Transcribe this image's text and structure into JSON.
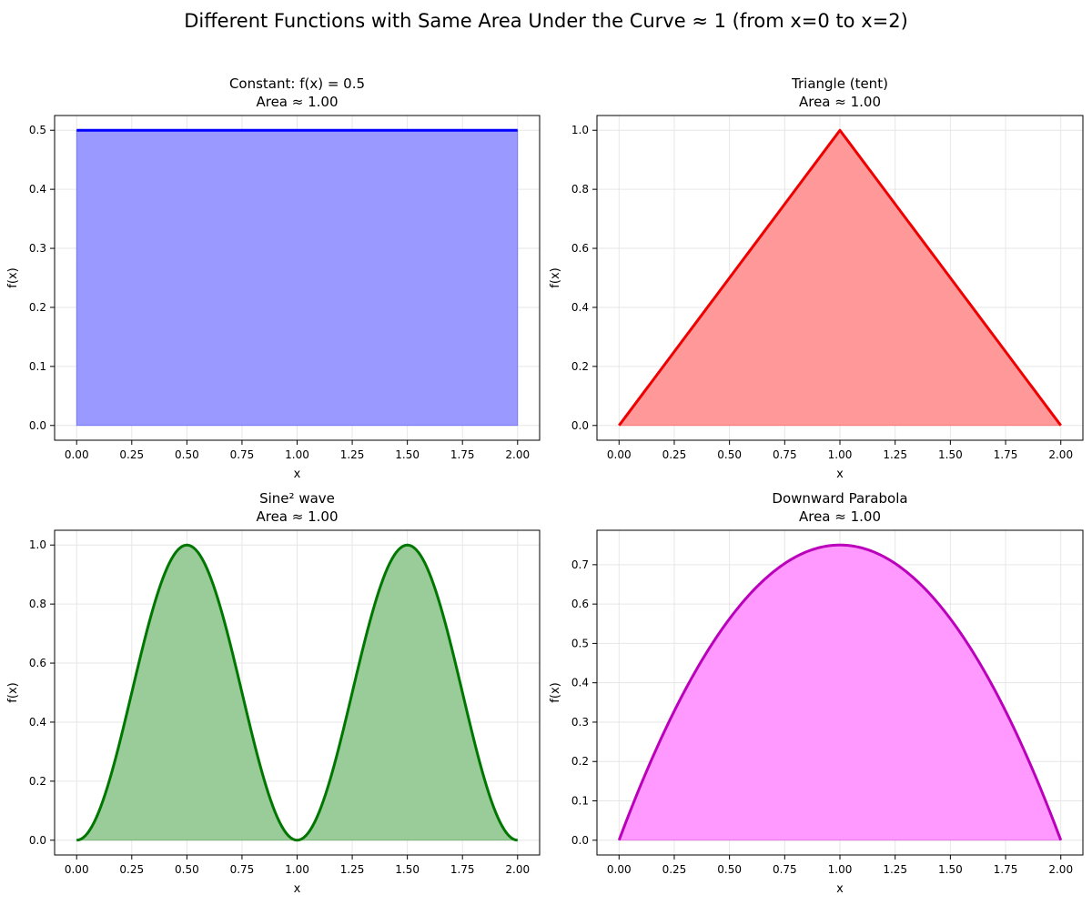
{
  "figure": {
    "title": "Different Functions with Same Area Under the Curve ≈ 1 (from x=0 to x=2)"
  },
  "chart_data": [
    {
      "type": "area",
      "title": "Constant: f(x) = 0.5",
      "subtitle": "Area ≈ 1.00",
      "xlabel": "x",
      "ylabel": "f(x)",
      "xlim": [
        -0.1,
        2.1
      ],
      "ylim": [
        -0.025,
        0.525
      ],
      "xticks": [
        "0.00",
        "0.25",
        "0.50",
        "0.75",
        "1.00",
        "1.25",
        "1.50",
        "1.75",
        "2.00"
      ],
      "yticks": [
        "0.0",
        "0.1",
        "0.2",
        "0.3",
        "0.4",
        "0.5"
      ],
      "grid": true,
      "color": "#0000ff",
      "fill_color": "#9999ff",
      "x": [
        0,
        0.25,
        0.5,
        0.75,
        1.0,
        1.25,
        1.5,
        1.75,
        2.0
      ],
      "y": [
        0.5,
        0.5,
        0.5,
        0.5,
        0.5,
        0.5,
        0.5,
        0.5,
        0.5
      ]
    },
    {
      "type": "area",
      "title": "Triangle (tent)",
      "subtitle": "Area ≈ 1.00",
      "xlabel": "x",
      "ylabel": "f(x)",
      "xlim": [
        -0.1,
        2.1
      ],
      "ylim": [
        -0.05,
        1.05
      ],
      "xticks": [
        "0.00",
        "0.25",
        "0.50",
        "0.75",
        "1.00",
        "1.25",
        "1.50",
        "1.75",
        "2.00"
      ],
      "yticks": [
        "0.0",
        "0.2",
        "0.4",
        "0.6",
        "0.8",
        "1.0"
      ],
      "grid": true,
      "color": "#ee0000",
      "fill_color": "#ff9999",
      "x": [
        0,
        0.25,
        0.5,
        0.75,
        1.0,
        1.25,
        1.5,
        1.75,
        2.0
      ],
      "y": [
        0,
        0.25,
        0.5,
        0.75,
        1.0,
        0.75,
        0.5,
        0.25,
        0
      ]
    },
    {
      "type": "area",
      "title": "Sine² wave",
      "subtitle": "Area ≈ 1.00",
      "xlabel": "x",
      "ylabel": "f(x)",
      "xlim": [
        -0.1,
        2.1
      ],
      "ylim": [
        -0.05,
        1.05
      ],
      "xticks": [
        "0.00",
        "0.25",
        "0.50",
        "0.75",
        "1.00",
        "1.25",
        "1.50",
        "1.75",
        "2.00"
      ],
      "yticks": [
        "0.0",
        "0.2",
        "0.4",
        "0.6",
        "0.8",
        "1.0"
      ],
      "grid": true,
      "color": "#007700",
      "fill_color": "#99cc99",
      "x": [
        0,
        0.125,
        0.25,
        0.375,
        0.5,
        0.625,
        0.75,
        0.875,
        1.0,
        1.125,
        1.25,
        1.375,
        1.5,
        1.625,
        1.75,
        1.875,
        2.0
      ],
      "y": [
        0,
        0.146,
        0.5,
        0.854,
        1.0,
        0.854,
        0.5,
        0.146,
        0,
        0.146,
        0.5,
        0.854,
        1.0,
        0.854,
        0.5,
        0.146,
        0
      ]
    },
    {
      "type": "area",
      "title": "Downward Parabola",
      "subtitle": "Area ≈ 1.00",
      "xlabel": "x",
      "ylabel": "f(x)",
      "xlim": [
        -0.1,
        2.1
      ],
      "ylim": [
        -0.0375,
        0.7875
      ],
      "xticks": [
        "0.00",
        "0.25",
        "0.50",
        "0.75",
        "1.00",
        "1.25",
        "1.50",
        "1.75",
        "2.00"
      ],
      "yticks": [
        "0.0",
        "0.1",
        "0.2",
        "0.3",
        "0.4",
        "0.5",
        "0.6",
        "0.7"
      ],
      "grid": true,
      "color": "#bb00bb",
      "fill_color": "#ff99ff",
      "x": [
        0,
        0.125,
        0.25,
        0.375,
        0.5,
        0.625,
        0.75,
        0.875,
        1.0,
        1.125,
        1.25,
        1.375,
        1.5,
        1.625,
        1.75,
        1.875,
        2.0
      ],
      "y": [
        0,
        0.176,
        0.328,
        0.457,
        0.563,
        0.645,
        0.703,
        0.738,
        0.75,
        0.738,
        0.703,
        0.645,
        0.563,
        0.457,
        0.328,
        0.176,
        0
      ]
    }
  ]
}
